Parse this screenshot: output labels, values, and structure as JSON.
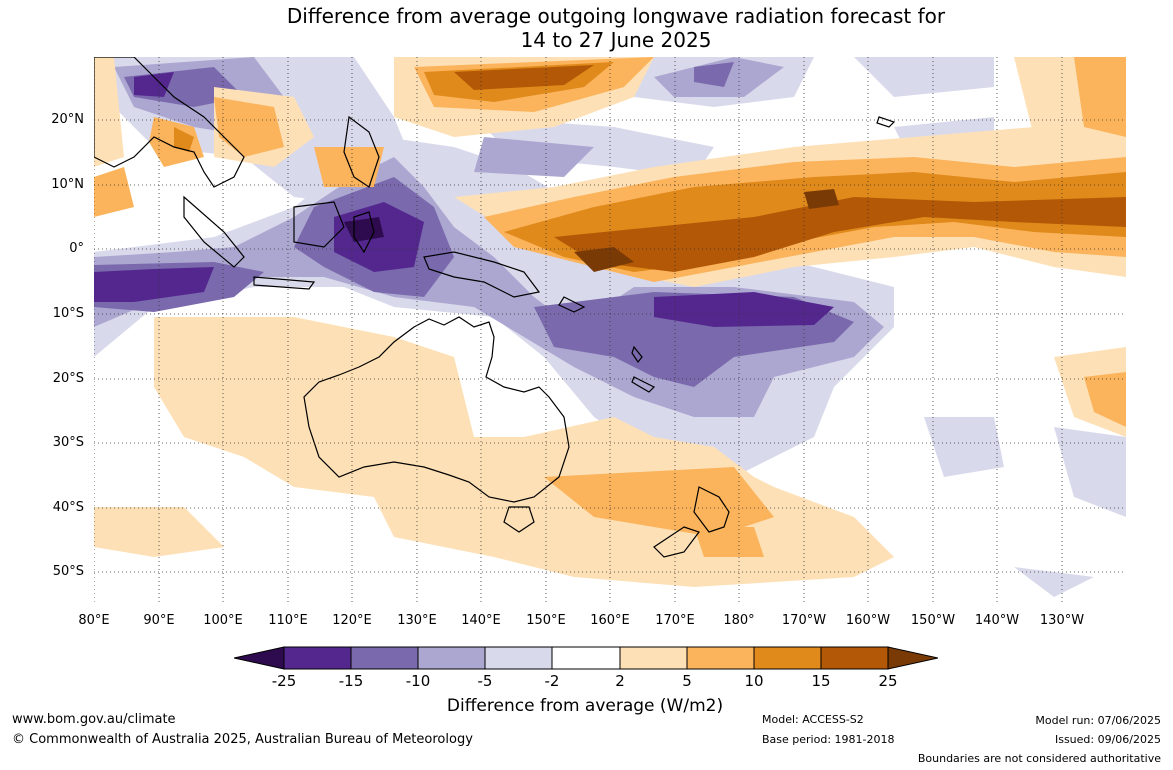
{
  "title": {
    "line1": "Difference from average outgoing longwave radiation forecast for",
    "line2": "14 to 27 June 2025"
  },
  "axes": {
    "lat_labels": [
      "20°N",
      "10°N",
      "0°",
      "10°S",
      "20°S",
      "30°S",
      "40°S",
      "50°S"
    ],
    "lon_labels": [
      "80°E",
      "90°E",
      "100°E",
      "110°E",
      "120°E",
      "130°E",
      "140°E",
      "150°E",
      "160°E",
      "170°E",
      "180°",
      "170°W",
      "160°W",
      "150°W",
      "140°W",
      "130°W"
    ]
  },
  "colorbar": {
    "title": "Difference from average (W/m2)",
    "tick_labels": [
      "-25",
      "-15",
      "-10",
      "-5",
      "-2",
      "2",
      "5",
      "10",
      "15",
      "25"
    ],
    "colors": {
      "below_-25": "#2d0b4e",
      "-25_-15": "#54278f",
      "-15_-10": "#7a6aad",
      "-10_-5": "#aca7d0",
      "-5_-2": "#d9d9ec",
      "-2_2": "#ffffff",
      "2_5": "#fde0b6",
      "5_10": "#fbb35c",
      "10_15": "#df8a1a",
      "15_25": "#b35806",
      "above_25": "#7a3a05"
    }
  },
  "map": {
    "region": "Maritime Continent, Australia and southwest Pacific",
    "lon_range": "80°E to 125°W",
    "lat_range": "56°S to 30°N",
    "land_outline_color": "#000000",
    "gridline_style": "dotted"
  },
  "footer": {
    "website": "www.bom.gov.au/climate",
    "copyright": "© Commonwealth of Australia 2025, Australian Bureau of Meteorology",
    "model": "Model: ACCESS-S2",
    "base_period": "Base period: 1981-2018",
    "model_run": "Model run: 07/06/2025",
    "issued": "Issued: 09/06/2025",
    "disclaimer": "Boundaries are not considered authoritative"
  }
}
